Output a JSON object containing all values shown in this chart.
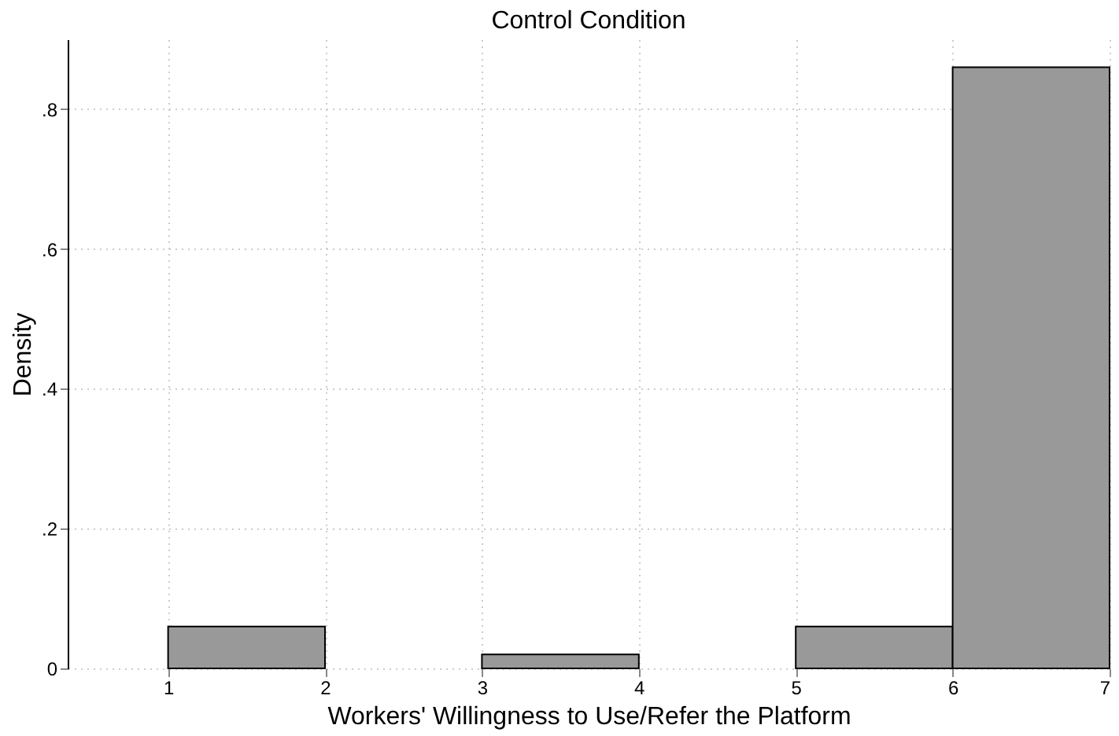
{
  "chart_data": {
    "type": "histogram",
    "title": "Control Condition",
    "xlabel": "Workers' Willingness to Use/Refer the Platform",
    "ylabel": "Density",
    "bins": [
      1,
      2,
      3,
      4,
      5,
      6,
      7
    ],
    "values": [
      0.06,
      0,
      0.02,
      0,
      0.06,
      0.86
    ],
    "color": "#999999",
    "xlim": [
      0.36,
      7
    ],
    "xticks": [
      1,
      2,
      3,
      4,
      5,
      6,
      7
    ],
    "ylim": [
      0,
      0.9
    ],
    "yticks": [
      0,
      {
        "value": 0.2,
        "label": ".2"
      },
      {
        "value": 0.4,
        "label": ".4"
      },
      {
        "value": 0.6,
        "label": ".6"
      },
      {
        "value": 0.8,
        "label": ".8"
      }
    ],
    "grid": true
  }
}
